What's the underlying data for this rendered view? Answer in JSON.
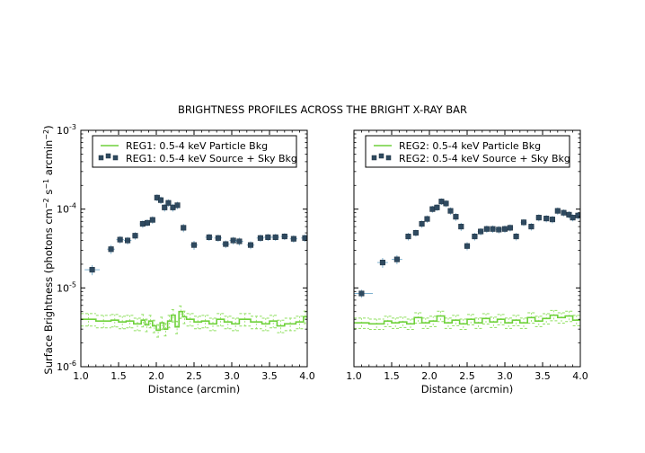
{
  "title": "BRIGHTNESS PROFILES ACROSS THE BRIGHT X-RAY BAR",
  "colors": {
    "particle": "#6fd13b",
    "particle_band": "#8fdf5f",
    "source": "#2f4a60",
    "source_err": "#7fb2d0",
    "axis": "#000000"
  },
  "chart_data": [
    {
      "type": "line",
      "xlabel": "Distance (arcmin)",
      "ylabel": "Surface Brightness (photons cm⁻² s⁻¹ arcmin⁻²)",
      "ylabel_parts": [
        "Surface Brightness (photons cm",
        "−2",
        " s",
        "−1",
        " arcmin",
        "−2",
        ")"
      ],
      "xlim": [
        1.0,
        4.0
      ],
      "ylim_log10": [
        -6,
        -3
      ],
      "xticks": [
        "1.0",
        "1.5",
        "2.0",
        "2.5",
        "3.0",
        "3.5",
        "4.0"
      ],
      "yticks": [
        {
          "base": "10",
          "exp": "-6"
        },
        {
          "base": "10",
          "exp": "-5"
        },
        {
          "base": "10",
          "exp": "-4"
        },
        {
          "base": "10",
          "exp": "-3"
        }
      ],
      "legend": {
        "position": "top-center",
        "particle_label": "REG1: 0.5-4 keV Particle Bkg",
        "source_label": "REG1: 0.5-4 keV Source + Sky Bkg"
      },
      "source_points": [
        {
          "x": 1.15,
          "xerr": 0.1,
          "y": 1.7e-05,
          "yerr": 2.5e-06
        },
        {
          "x": 1.4,
          "xerr": 0.05,
          "y": 3.1e-05,
          "yerr": 4e-06
        },
        {
          "x": 1.52,
          "xerr": 0.05,
          "y": 4.1e-05,
          "yerr": 4.5e-06
        },
        {
          "x": 1.62,
          "xerr": 0.05,
          "y": 4e-05,
          "yerr": 4.5e-06
        },
        {
          "x": 1.72,
          "xerr": 0.04,
          "y": 4.6e-05,
          "yerr": 5e-06
        },
        {
          "x": 1.82,
          "xerr": 0.04,
          "y": 6.5e-05,
          "yerr": 7e-06
        },
        {
          "x": 1.88,
          "xerr": 0.03,
          "y": 6.7e-05,
          "yerr": 7e-06
        },
        {
          "x": 1.95,
          "xerr": 0.03,
          "y": 7.3e-05,
          "yerr": 8e-06
        },
        {
          "x": 2.01,
          "xerr": 0.03,
          "y": 0.00014,
          "yerr": 1.4e-05
        },
        {
          "x": 2.06,
          "xerr": 0.03,
          "y": 0.00013,
          "yerr": 1.4e-05
        },
        {
          "x": 2.11,
          "xerr": 0.03,
          "y": 0.000105,
          "yerr": 1.2e-05
        },
        {
          "x": 2.16,
          "xerr": 0.03,
          "y": 0.00012,
          "yerr": 1.3e-05
        },
        {
          "x": 2.22,
          "xerr": 0.03,
          "y": 0.000105,
          "yerr": 1.2e-05
        },
        {
          "x": 2.28,
          "xerr": 0.03,
          "y": 0.000112,
          "yerr": 1.2e-05
        },
        {
          "x": 2.36,
          "xerr": 0.03,
          "y": 5.8e-05,
          "yerr": 7e-06
        },
        {
          "x": 2.5,
          "xerr": 0.05,
          "y": 3.5e-05,
          "yerr": 4.5e-06
        },
        {
          "x": 2.7,
          "xerr": 0.05,
          "y": 4.4e-05,
          "yerr": 4.5e-06
        },
        {
          "x": 2.82,
          "xerr": 0.05,
          "y": 4.3e-05,
          "yerr": 4.5e-06
        },
        {
          "x": 2.92,
          "xerr": 0.05,
          "y": 3.6e-05,
          "yerr": 4e-06
        },
        {
          "x": 3.02,
          "xerr": 0.05,
          "y": 4e-05,
          "yerr": 4.5e-06
        },
        {
          "x": 3.1,
          "xerr": 0.05,
          "y": 3.9e-05,
          "yerr": 4.5e-06
        },
        {
          "x": 3.25,
          "xerr": 0.05,
          "y": 3.5e-05,
          "yerr": 4e-06
        },
        {
          "x": 3.38,
          "xerr": 0.05,
          "y": 4.3e-05,
          "yerr": 4.5e-06
        },
        {
          "x": 3.48,
          "xerr": 0.05,
          "y": 4.4e-05,
          "yerr": 4.5e-06
        },
        {
          "x": 3.58,
          "xerr": 0.05,
          "y": 4.4e-05,
          "yerr": 4.5e-06
        },
        {
          "x": 3.7,
          "xerr": 0.05,
          "y": 4.5e-05,
          "yerr": 4.5e-06
        },
        {
          "x": 3.82,
          "xerr": 0.05,
          "y": 4.2e-05,
          "yerr": 4.5e-06
        },
        {
          "x": 3.97,
          "xerr": 0.05,
          "y": 4.3e-05,
          "yerr": 4.5e-06
        }
      ],
      "particle_steps": {
        "x": [
          1.0,
          1.2,
          1.4,
          1.5,
          1.6,
          1.7,
          1.8,
          1.85,
          1.9,
          1.95,
          2.0,
          2.05,
          2.1,
          2.15,
          2.2,
          2.25,
          2.3,
          2.35,
          2.4,
          2.5,
          2.6,
          2.7,
          2.8,
          2.9,
          3.0,
          3.1,
          3.25,
          3.4,
          3.5,
          3.6,
          3.7,
          3.85,
          3.95
        ],
        "y": [
          4e-06,
          3.8e-06,
          3.9e-06,
          3.7e-06,
          3.8e-06,
          3.5e-06,
          3.9e-06,
          3.4e-06,
          3.8e-06,
          3.3e-06,
          2.9e-06,
          3.6e-06,
          3e-06,
          3.8e-06,
          4.5e-06,
          3.2e-06,
          5e-06,
          4.3e-06,
          4e-06,
          3.7e-06,
          3.8e-06,
          3.5e-06,
          4e-06,
          3.7e-06,
          3.5e-06,
          4e-06,
          3.7e-06,
          3.5e-06,
          3.8e-06,
          3.3e-06,
          3.5e-06,
          3.7e-06,
          4.3e-06
        ],
        "x_end": 4.0,
        "band_fraction": 0.18
      }
    },
    {
      "type": "line",
      "xlabel": "Distance (arcmin)",
      "xlim": [
        1.0,
        4.0
      ],
      "ylim_log10": [
        -6,
        -3
      ],
      "xticks": [
        "1.0",
        "1.5",
        "2.0",
        "2.5",
        "3.0",
        "3.5",
        "4.0"
      ],
      "legend": {
        "position": "top-center",
        "particle_label": "REG2: 0.5-4 keV Particle Bkg",
        "source_label": "REG2: 0.5-4 keV Source + Sky Bkg"
      },
      "source_points": [
        {
          "x": 1.1,
          "xerr": 0.15,
          "y": 8.5e-06,
          "yerr": 1e-06
        },
        {
          "x": 1.38,
          "xerr": 0.07,
          "y": 2.1e-05,
          "yerr": 3e-06
        },
        {
          "x": 1.57,
          "xerr": 0.07,
          "y": 2.3e-05,
          "yerr": 3e-06
        },
        {
          "x": 1.72,
          "xerr": 0.04,
          "y": 4.5e-05,
          "yerr": 5e-06
        },
        {
          "x": 1.82,
          "xerr": 0.04,
          "y": 5e-05,
          "yerr": 5e-06
        },
        {
          "x": 1.9,
          "xerr": 0.03,
          "y": 6.5e-05,
          "yerr": 7e-06
        },
        {
          "x": 1.97,
          "xerr": 0.03,
          "y": 7.5e-05,
          "yerr": 8e-06
        },
        {
          "x": 2.04,
          "xerr": 0.03,
          "y": 0.0001,
          "yerr": 1e-05
        },
        {
          "x": 2.1,
          "xerr": 0.03,
          "y": 0.000105,
          "yerr": 1e-05
        },
        {
          "x": 2.16,
          "xerr": 0.03,
          "y": 0.000125,
          "yerr": 1.2e-05
        },
        {
          "x": 2.22,
          "xerr": 0.03,
          "y": 0.000118,
          "yerr": 1.2e-05
        },
        {
          "x": 2.28,
          "xerr": 0.03,
          "y": 9.5e-05,
          "yerr": 1e-05
        },
        {
          "x": 2.35,
          "xerr": 0.03,
          "y": 8e-05,
          "yerr": 9e-06
        },
        {
          "x": 2.42,
          "xerr": 0.03,
          "y": 6e-05,
          "yerr": 7e-06
        },
        {
          "x": 2.5,
          "xerr": 0.04,
          "y": 3.4e-05,
          "yerr": 4e-06
        },
        {
          "x": 2.6,
          "xerr": 0.04,
          "y": 4.5e-05,
          "yerr": 5e-06
        },
        {
          "x": 2.68,
          "xerr": 0.04,
          "y": 5.2e-05,
          "yerr": 5.5e-06
        },
        {
          "x": 2.76,
          "xerr": 0.04,
          "y": 5.6e-05,
          "yerr": 6e-06
        },
        {
          "x": 2.84,
          "xerr": 0.04,
          "y": 5.6e-05,
          "yerr": 6e-06
        },
        {
          "x": 2.92,
          "xerr": 0.04,
          "y": 5.5e-05,
          "yerr": 6e-06
        },
        {
          "x": 3.0,
          "xerr": 0.04,
          "y": 5.6e-05,
          "yerr": 6e-06
        },
        {
          "x": 3.07,
          "xerr": 0.04,
          "y": 5.8e-05,
          "yerr": 6e-06
        },
        {
          "x": 3.15,
          "xerr": 0.04,
          "y": 4.5e-05,
          "yerr": 5e-06
        },
        {
          "x": 3.25,
          "xerr": 0.04,
          "y": 6.8e-05,
          "yerr": 7e-06
        },
        {
          "x": 3.35,
          "xerr": 0.04,
          "y": 6e-05,
          "yerr": 6.5e-06
        },
        {
          "x": 3.45,
          "xerr": 0.04,
          "y": 7.8e-05,
          "yerr": 8e-06
        },
        {
          "x": 3.55,
          "xerr": 0.04,
          "y": 7.6e-05,
          "yerr": 8e-06
        },
        {
          "x": 3.63,
          "xerr": 0.03,
          "y": 7.4e-05,
          "yerr": 8e-06
        },
        {
          "x": 3.7,
          "xerr": 0.03,
          "y": 9.5e-05,
          "yerr": 1e-05
        },
        {
          "x": 3.78,
          "xerr": 0.03,
          "y": 9e-05,
          "yerr": 9e-06
        },
        {
          "x": 3.85,
          "xerr": 0.03,
          "y": 8.5e-05,
          "yerr": 9e-06
        },
        {
          "x": 3.9,
          "xerr": 0.03,
          "y": 7.8e-05,
          "yerr": 8e-06
        },
        {
          "x": 3.97,
          "xerr": 0.03,
          "y": 8.3e-05,
          "yerr": 9e-06
        }
      ],
      "particle_steps": {
        "x": [
          1.0,
          1.2,
          1.4,
          1.5,
          1.6,
          1.7,
          1.8,
          1.9,
          2.0,
          2.1,
          2.2,
          2.3,
          2.4,
          2.5,
          2.6,
          2.7,
          2.8,
          2.9,
          3.0,
          3.1,
          3.2,
          3.3,
          3.4,
          3.5,
          3.6,
          3.7,
          3.8,
          3.9
        ],
        "y": [
          3.6e-06,
          3.5e-06,
          3.8e-06,
          3.6e-06,
          3.7e-06,
          3.5e-06,
          4.2e-06,
          3.6e-06,
          3.8e-06,
          4.4e-06,
          3.6e-06,
          3.9e-06,
          3.5e-06,
          4e-06,
          3.6e-06,
          4.1e-06,
          3.7e-06,
          4e-06,
          3.6e-06,
          3.9e-06,
          3.6e-06,
          4.2e-06,
          3.8e-06,
          4.1e-06,
          4.5e-06,
          4.2e-06,
          4.4e-06,
          3.9e-06
        ],
        "x_end": 4.0,
        "band_fraction": 0.15
      }
    }
  ]
}
